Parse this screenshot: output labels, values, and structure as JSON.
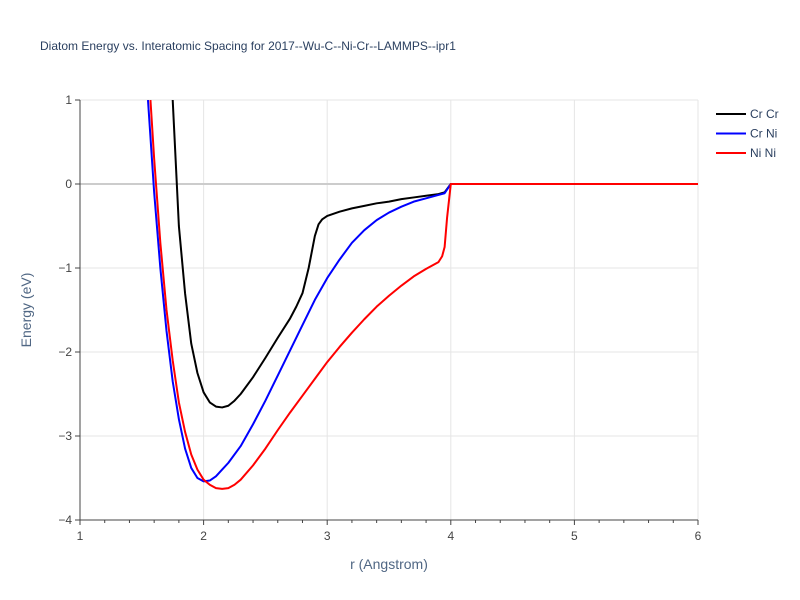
{
  "chart_data": {
    "type": "line",
    "title": "Diatom Energy vs. Interatomic Spacing for 2017--Wu-C--Ni-Cr--LAMMPS--ipr1",
    "xlabel": "r (Angstrom)",
    "ylabel": "Energy (eV)",
    "xlim": [
      1,
      6
    ],
    "ylim": [
      -4,
      1
    ],
    "xticks": [
      1,
      2,
      3,
      4,
      5,
      6
    ],
    "yticks": [
      1,
      0,
      -1,
      -2,
      -3,
      -4
    ],
    "ytick_labels": [
      "1",
      "0",
      "−1",
      "−2",
      "−3",
      "−4"
    ],
    "grid": true,
    "legend_position": "top-right",
    "series": [
      {
        "name": "Cr Cr",
        "color": "#000000",
        "x": [
          1.75,
          1.8,
          1.85,
          1.9,
          1.95,
          2.0,
          2.05,
          2.1,
          2.15,
          2.2,
          2.25,
          2.3,
          2.4,
          2.5,
          2.6,
          2.7,
          2.75,
          2.8,
          2.85,
          2.9,
          2.93,
          2.96,
          3.0,
          3.1,
          3.2,
          3.3,
          3.4,
          3.5,
          3.6,
          3.7,
          3.8,
          3.9,
          3.95,
          4.0,
          4.5,
          5.0,
          5.5,
          6.0
        ],
        "y": [
          1.0,
          -0.5,
          -1.3,
          -1.9,
          -2.25,
          -2.48,
          -2.6,
          -2.65,
          -2.66,
          -2.64,
          -2.58,
          -2.5,
          -2.3,
          -2.07,
          -1.83,
          -1.6,
          -1.46,
          -1.3,
          -1.0,
          -0.62,
          -0.48,
          -0.42,
          -0.38,
          -0.33,
          -0.29,
          -0.26,
          -0.23,
          -0.21,
          -0.18,
          -0.16,
          -0.14,
          -0.12,
          -0.1,
          0.0,
          0.0,
          0.0,
          0.0,
          0.0
        ]
      },
      {
        "name": "Cr Ni",
        "color": "#0000ff",
        "x": [
          1.55,
          1.6,
          1.65,
          1.7,
          1.75,
          1.8,
          1.85,
          1.9,
          1.95,
          2.0,
          2.05,
          2.1,
          2.15,
          2.2,
          2.3,
          2.4,
          2.5,
          2.6,
          2.7,
          2.8,
          2.9,
          3.0,
          3.1,
          3.2,
          3.3,
          3.4,
          3.5,
          3.6,
          3.7,
          3.8,
          3.9,
          3.95,
          4.0,
          4.5,
          5.0,
          5.5,
          6.0
        ],
        "y": [
          1.0,
          -0.1,
          -1.0,
          -1.75,
          -2.35,
          -2.8,
          -3.15,
          -3.38,
          -3.5,
          -3.54,
          -3.53,
          -3.48,
          -3.4,
          -3.32,
          -3.12,
          -2.86,
          -2.58,
          -2.28,
          -1.98,
          -1.68,
          -1.38,
          -1.12,
          -0.9,
          -0.7,
          -0.55,
          -0.43,
          -0.34,
          -0.27,
          -0.21,
          -0.17,
          -0.13,
          -0.11,
          0.0,
          0.0,
          0.0,
          0.0,
          0.0
        ]
      },
      {
        "name": "Ni Ni",
        "color": "#ff0000",
        "x": [
          1.57,
          1.6,
          1.65,
          1.7,
          1.75,
          1.8,
          1.85,
          1.9,
          1.95,
          2.0,
          2.05,
          2.1,
          2.15,
          2.2,
          2.25,
          2.3,
          2.4,
          2.5,
          2.6,
          2.7,
          2.8,
          2.9,
          3.0,
          3.1,
          3.2,
          3.3,
          3.4,
          3.5,
          3.6,
          3.7,
          3.8,
          3.9,
          3.93,
          3.95,
          3.97,
          4.0,
          4.5,
          5.0,
          5.5,
          6.0
        ],
        "y": [
          1.0,
          0.3,
          -0.7,
          -1.5,
          -2.1,
          -2.6,
          -2.95,
          -3.22,
          -3.4,
          -3.52,
          -3.58,
          -3.62,
          -3.63,
          -3.62,
          -3.58,
          -3.52,
          -3.35,
          -3.15,
          -2.93,
          -2.72,
          -2.52,
          -2.32,
          -2.12,
          -1.94,
          -1.77,
          -1.61,
          -1.46,
          -1.33,
          -1.21,
          -1.1,
          -1.01,
          -0.93,
          -0.86,
          -0.75,
          -0.4,
          0.0,
          0.0,
          0.0,
          0.0,
          0.0
        ]
      }
    ]
  }
}
